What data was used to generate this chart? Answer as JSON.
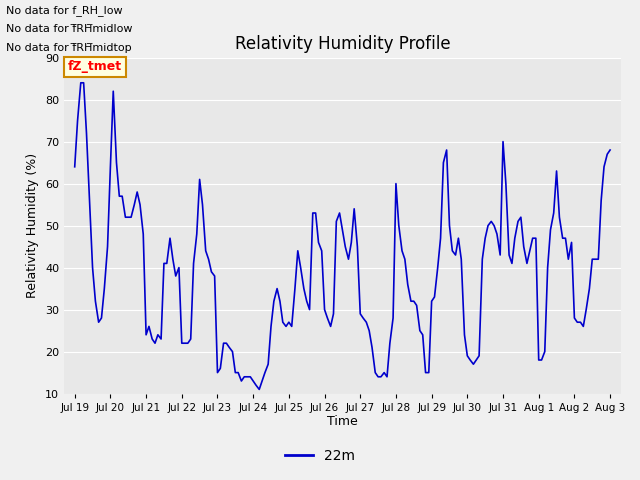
{
  "title": "Relativity Humidity Profile",
  "xlabel": "Time",
  "ylabel": "Relativity Humidity (%)",
  "ylim": [
    10,
    90
  ],
  "yticks": [
    10,
    20,
    30,
    40,
    50,
    60,
    70,
    80,
    90
  ],
  "fig_bg_color": "#f0f0f0",
  "plot_bg_color": "#e8e8e8",
  "line_color": "#0000cc",
  "line_width": 1.2,
  "legend_label": "22m",
  "no_data_texts": [
    "No data for f_RH_low",
    "No data for f̅RH̅midlow",
    "No data for f̅RH̅midtop"
  ],
  "fz_tmet_label": "fZ_tmet",
  "x_tick_labels": [
    "Jul 19",
    "Jul 20",
    "Jul 21",
    "Jul 22",
    "Jul 23",
    "Jul 24",
    "Jul 25",
    "Jul 26",
    "Jul 27",
    "Jul 28",
    "Jul 29",
    "Jul 30",
    "Jul 31",
    "Aug 1",
    "Aug 2",
    "Aug 3"
  ],
  "x_tick_positions": [
    0,
    1,
    2,
    3,
    4,
    5,
    6,
    7,
    8,
    9,
    10,
    11,
    12,
    13,
    14,
    15
  ],
  "xlim": [
    -0.3,
    15.3
  ],
  "data_x": [
    0.0,
    0.08,
    0.17,
    0.25,
    0.33,
    0.42,
    0.5,
    0.58,
    0.67,
    0.75,
    0.83,
    0.92,
    1.0,
    1.08,
    1.17,
    1.25,
    1.33,
    1.42,
    1.5,
    1.58,
    1.67,
    1.75,
    1.83,
    1.92,
    2.0,
    2.08,
    2.17,
    2.25,
    2.33,
    2.42,
    2.5,
    2.58,
    2.67,
    2.75,
    2.83,
    2.92,
    3.0,
    3.08,
    3.17,
    3.25,
    3.33,
    3.42,
    3.5,
    3.58,
    3.67,
    3.75,
    3.83,
    3.92,
    4.0,
    4.08,
    4.17,
    4.25,
    4.33,
    4.42,
    4.5,
    4.58,
    4.67,
    4.75,
    4.83,
    4.92,
    5.0,
    5.08,
    5.17,
    5.25,
    5.33,
    5.42,
    5.5,
    5.58,
    5.67,
    5.75,
    5.83,
    5.92,
    6.0,
    6.08,
    6.17,
    6.25,
    6.33,
    6.42,
    6.5,
    6.58,
    6.67,
    6.75,
    6.83,
    6.92,
    7.0,
    7.08,
    7.17,
    7.25,
    7.33,
    7.42,
    7.5,
    7.58,
    7.67,
    7.75,
    7.83,
    7.92,
    8.0,
    8.08,
    8.17,
    8.25,
    8.33,
    8.42,
    8.5,
    8.58,
    8.67,
    8.75,
    8.83,
    8.92,
    9.0,
    9.08,
    9.17,
    9.25,
    9.33,
    9.42,
    9.5,
    9.58,
    9.67,
    9.75,
    9.83,
    9.92,
    10.0,
    10.08,
    10.17,
    10.25,
    10.33,
    10.42,
    10.5,
    10.58,
    10.67,
    10.75,
    10.83,
    10.92,
    11.0,
    11.08,
    11.17,
    11.25,
    11.33,
    11.42,
    11.5,
    11.58,
    11.67,
    11.75,
    11.83,
    11.92,
    12.0,
    12.08,
    12.17,
    12.25,
    12.33,
    12.42,
    12.5,
    12.58,
    12.67,
    12.75,
    12.83,
    12.92,
    13.0,
    13.08,
    13.17,
    13.25,
    13.33,
    13.42,
    13.5,
    13.58,
    13.67,
    13.75,
    13.83,
    13.92,
    14.0,
    14.08,
    14.17,
    14.25,
    14.33,
    14.42,
    14.5,
    14.58,
    14.67,
    14.75,
    14.83,
    14.92,
    15.0
  ],
  "data_y": [
    64,
    75,
    84,
    84,
    72,
    55,
    40,
    32,
    27,
    28,
    35,
    45,
    64,
    82,
    65,
    57,
    57,
    52,
    52,
    52,
    55,
    58,
    55,
    48,
    24,
    26,
    23,
    22,
    24,
    23,
    41,
    41,
    47,
    42,
    38,
    40,
    22,
    22,
    22,
    23,
    41,
    48,
    61,
    55,
    44,
    42,
    39,
    38,
    15,
    16,
    22,
    22,
    21,
    20,
    15,
    15,
    13,
    14,
    14,
    14,
    13,
    12,
    11,
    13,
    15,
    17,
    26,
    32,
    35,
    32,
    27,
    26,
    27,
    26,
    35,
    44,
    40,
    35,
    32,
    30,
    53,
    53,
    46,
    44,
    30,
    28,
    26,
    29,
    51,
    53,
    49,
    45,
    42,
    46,
    54,
    45,
    29,
    28,
    27,
    25,
    21,
    15,
    14,
    14,
    15,
    14,
    22,
    28,
    60,
    50,
    44,
    42,
    36,
    32,
    32,
    31,
    25,
    24,
    15,
    15,
    32,
    33,
    40,
    47,
    65,
    68,
    50,
    44,
    43,
    47,
    42,
    24,
    19,
    18,
    17,
    18,
    19,
    42,
    47,
    50,
    51,
    50,
    48,
    43,
    70,
    60,
    43,
    41,
    47,
    51,
    52,
    45,
    41,
    44,
    47,
    47,
    18,
    18,
    20,
    40,
    49,
    53,
    63,
    52,
    47,
    47,
    42,
    46,
    28,
    27,
    27,
    26,
    30,
    35,
    42,
    42,
    42,
    56,
    64,
    67,
    68
  ]
}
